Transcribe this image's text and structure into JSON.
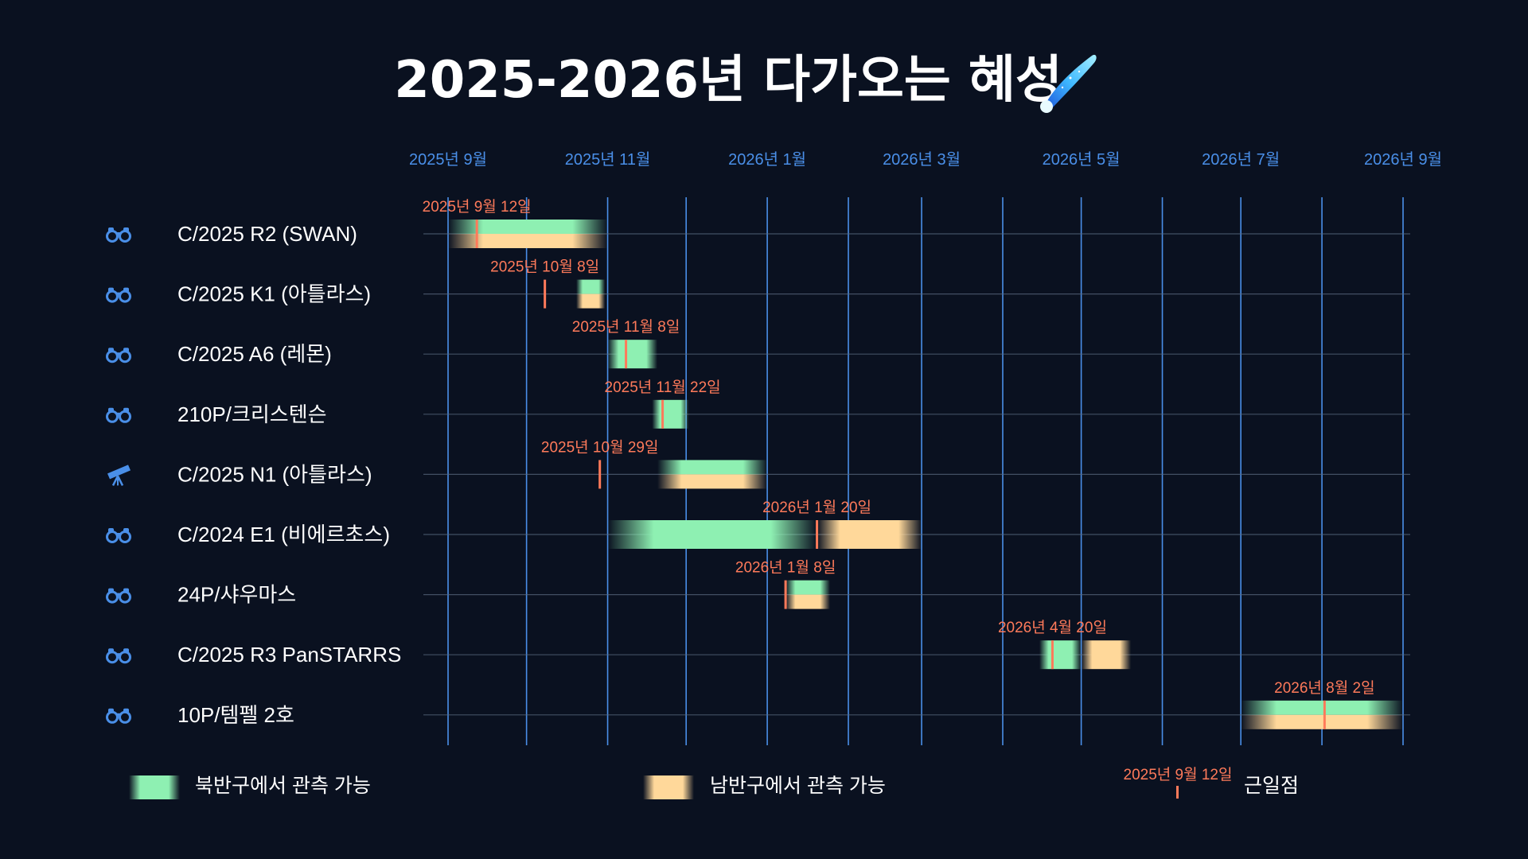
{
  "title": "2025-2026년 다가오는 혜성",
  "colors": {
    "background": "#0a1120",
    "grid": "#4a8fe8",
    "north": "#8ef0b2",
    "south": "#ffd89a",
    "perihelion": "#ff7a5a",
    "icon": "#4a8fe8"
  },
  "chart_data": {
    "type": "gantt",
    "x_ticks": [
      {
        "date": "2025-09-01",
        "label": "2025년 9월"
      },
      {
        "date": "2025-11-01",
        "label": "2025년 11월"
      },
      {
        "date": "2026-01-01",
        "label": "2026년 1월"
      },
      {
        "date": "2026-03-01",
        "label": "2026년 3월"
      },
      {
        "date": "2026-05-01",
        "label": "2026년 5월"
      },
      {
        "date": "2026-07-01",
        "label": "2026년 7월"
      },
      {
        "date": "2026-09-01",
        "label": "2026년 9월"
      }
    ],
    "xlim": [
      "2025-09-01",
      "2026-09-01"
    ],
    "comets": [
      {
        "name": "C/2025 R2 (SWAN)",
        "icon": "binoculars-icon",
        "north": [
          "2025-09-01",
          "2025-11-01"
        ],
        "south": [
          "2025-09-01",
          "2025-11-01"
        ],
        "perihelion": "2025-09-12",
        "perihelion_label": "2025년 9월 12일"
      },
      {
        "name": "C/2025 K1 (아틀라스)",
        "icon": "binoculars-icon",
        "north": [
          "2025-10-20",
          "2025-10-31"
        ],
        "south": [
          "2025-10-20",
          "2025-10-31"
        ],
        "perihelion": "2025-10-08",
        "perihelion_label": "2025년 10월 8일"
      },
      {
        "name": "C/2025 A6 (레몬)",
        "icon": "binoculars-icon",
        "north": [
          "2025-11-01",
          "2025-11-20"
        ],
        "south": null,
        "perihelion": "2025-11-08",
        "perihelion_label": "2025년 11월 8일"
      },
      {
        "name": "210P/크리스텐슨",
        "icon": "binoculars-icon",
        "north": [
          "2025-11-18",
          "2025-12-02"
        ],
        "south": null,
        "perihelion": "2025-11-22",
        "perihelion_label": "2025년 11월 22일"
      },
      {
        "name": "C/2025 N1 (아틀라스)",
        "icon": "telescope-icon",
        "north": [
          "2025-11-20",
          "2026-01-01"
        ],
        "south": [
          "2025-11-20",
          "2026-01-01"
        ],
        "perihelion": "2025-10-29",
        "perihelion_label": "2025년 10월 29일"
      },
      {
        "name": "C/2024 E1 (비에르초스)",
        "icon": "binoculars-icon",
        "north": [
          "2025-11-01",
          "2026-01-20"
        ],
        "south": [
          "2026-01-20",
          "2026-03-01"
        ],
        "perihelion": "2026-01-20",
        "perihelion_label": "2026년 1월 20일"
      },
      {
        "name": "24P/샤우마스",
        "icon": "binoculars-icon",
        "north": [
          "2026-01-08",
          "2026-01-25"
        ],
        "south": [
          "2026-01-08",
          "2026-01-25"
        ],
        "perihelion": "2026-01-08",
        "perihelion_label": "2026년 1월 8일"
      },
      {
        "name": "C/2025 R3 PanSTARRS",
        "icon": "binoculars-icon",
        "north": [
          "2026-04-15",
          "2026-05-01"
        ],
        "south": [
          "2026-05-01",
          "2026-05-20"
        ],
        "perihelion": "2026-04-20",
        "perihelion_label": "2026년 4월 20일"
      },
      {
        "name": "10P/템펠 2호",
        "icon": "binoculars-icon",
        "north": [
          "2026-07-01",
          "2026-09-01"
        ],
        "south": [
          "2026-07-01",
          "2026-09-01"
        ],
        "perihelion": "2026-08-02",
        "perihelion_label": "2026년 8월 2일"
      }
    ],
    "legend": {
      "north": "북반구에서 관측 가능",
      "south": "남반구에서 관측 가능",
      "perihelion_example": "2025년 9월 12일",
      "perihelion": "근일점"
    }
  }
}
